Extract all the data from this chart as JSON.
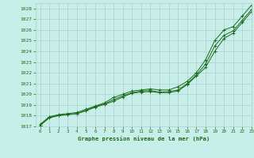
{
  "bg_color": "#c8eeea",
  "grid_color": "#b0cdd0",
  "line_color": "#1a6b1a",
  "xlabel": "Graphe pression niveau de la mer (hPa)",
  "ylim": [
    1017,
    1028.5
  ],
  "xlim": [
    -0.5,
    23
  ],
  "yticks": [
    1017,
    1018,
    1019,
    1020,
    1021,
    1022,
    1023,
    1024,
    1025,
    1026,
    1027,
    1028
  ],
  "xticks": [
    0,
    1,
    2,
    3,
    4,
    5,
    6,
    7,
    8,
    9,
    10,
    11,
    12,
    13,
    14,
    15,
    16,
    17,
    18,
    19,
    20,
    21,
    22,
    23
  ],
  "line1": [
    1017.2,
    1017.9,
    1018.1,
    1018.2,
    1018.3,
    1018.6,
    1018.9,
    1019.2,
    1019.7,
    1020.0,
    1020.3,
    1020.4,
    1020.5,
    1020.4,
    1020.4,
    1020.7,
    1021.2,
    1022.0,
    1023.2,
    1025.0,
    1026.0,
    1026.3,
    1027.3,
    1028.3
  ],
  "line2": [
    1017.1,
    1017.85,
    1018.05,
    1018.1,
    1018.2,
    1018.5,
    1018.85,
    1019.1,
    1019.5,
    1019.85,
    1020.15,
    1020.3,
    1020.35,
    1020.2,
    1020.25,
    1020.4,
    1021.0,
    1021.8,
    1022.8,
    1024.5,
    1025.5,
    1025.9,
    1026.9,
    1027.9
  ],
  "line3": [
    1017.1,
    1017.8,
    1018.0,
    1018.1,
    1018.2,
    1018.45,
    1018.8,
    1019.05,
    1019.35,
    1019.75,
    1020.1,
    1020.2,
    1020.25,
    1020.15,
    1020.15,
    1020.3,
    1020.9,
    1021.7,
    1022.5,
    1024.0,
    1025.2,
    1025.7,
    1026.7,
    1027.7
  ]
}
